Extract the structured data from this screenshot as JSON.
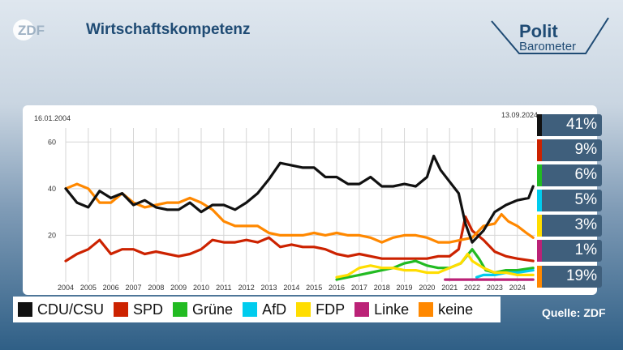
{
  "header": {
    "logo_text": "ZDF",
    "title": "Wirtschaftskompetenz",
    "brand_line1": "Polit",
    "brand_line2": "Barometer"
  },
  "colors": {
    "title": "#1f4b74"
  },
  "chart_data": {
    "type": "line",
    "title": "Wirtschaftskompetenz",
    "start_date": "16.01.2004",
    "end_date": "13.09.2024",
    "x_ticks": [
      "2004",
      "2005",
      "2006",
      "2007",
      "2008",
      "2009",
      "2010",
      "2011",
      "2012",
      "2013",
      "2014",
      "2015",
      "2016",
      "2017",
      "2018",
      "2019",
      "2020",
      "2021",
      "2022",
      "2023",
      "2024"
    ],
    "y_ticks": [
      20,
      40,
      60
    ],
    "xlim": [
      2004.0,
      2024.8
    ],
    "ylim": [
      0,
      66
    ],
    "grid": true,
    "legend_position": "bottom",
    "series": [
      {
        "name": "CDU/CSU",
        "color": "#111111",
        "final": "41%",
        "points": [
          [
            2004.0,
            40
          ],
          [
            2004.5,
            34
          ],
          [
            2005.0,
            32
          ],
          [
            2005.5,
            39
          ],
          [
            2006.0,
            36
          ],
          [
            2006.5,
            38
          ],
          [
            2007.0,
            33
          ],
          [
            2007.5,
            35
          ],
          [
            2008.0,
            32
          ],
          [
            2008.5,
            31
          ],
          [
            2009.0,
            31
          ],
          [
            2009.5,
            34
          ],
          [
            2010.0,
            30
          ],
          [
            2010.5,
            33
          ],
          [
            2011.0,
            33
          ],
          [
            2011.5,
            31
          ],
          [
            2012.0,
            34
          ],
          [
            2012.5,
            38
          ],
          [
            2013.0,
            44
          ],
          [
            2013.5,
            51
          ],
          [
            2014.0,
            50
          ],
          [
            2014.5,
            49
          ],
          [
            2015.0,
            49
          ],
          [
            2015.5,
            45
          ],
          [
            2016.0,
            45
          ],
          [
            2016.5,
            42
          ],
          [
            2017.0,
            42
          ],
          [
            2017.5,
            45
          ],
          [
            2018.0,
            41
          ],
          [
            2018.5,
            41
          ],
          [
            2019.0,
            42
          ],
          [
            2019.5,
            41
          ],
          [
            2020.0,
            45
          ],
          [
            2020.3,
            54
          ],
          [
            2020.6,
            48
          ],
          [
            2021.0,
            43
          ],
          [
            2021.4,
            38
          ],
          [
            2021.7,
            25
          ],
          [
            2022.0,
            17
          ],
          [
            2022.5,
            22
          ],
          [
            2023.0,
            30
          ],
          [
            2023.5,
            33
          ],
          [
            2024.0,
            35
          ],
          [
            2024.5,
            36
          ],
          [
            2024.7,
            41
          ]
        ]
      },
      {
        "name": "SPD",
        "color": "#cc2200",
        "final": "9%",
        "points": [
          [
            2004.0,
            9
          ],
          [
            2004.5,
            12
          ],
          [
            2005.0,
            14
          ],
          [
            2005.5,
            18
          ],
          [
            2006.0,
            12
          ],
          [
            2006.5,
            14
          ],
          [
            2007.0,
            14
          ],
          [
            2007.5,
            12
          ],
          [
            2008.0,
            13
          ],
          [
            2008.5,
            12
          ],
          [
            2009.0,
            11
          ],
          [
            2009.5,
            12
          ],
          [
            2010.0,
            14
          ],
          [
            2010.5,
            18
          ],
          [
            2011.0,
            17
          ],
          [
            2011.5,
            17
          ],
          [
            2012.0,
            18
          ],
          [
            2012.5,
            17
          ],
          [
            2013.0,
            19
          ],
          [
            2013.5,
            15
          ],
          [
            2014.0,
            16
          ],
          [
            2014.5,
            15
          ],
          [
            2015.0,
            15
          ],
          [
            2015.5,
            14
          ],
          [
            2016.0,
            12
          ],
          [
            2016.5,
            11
          ],
          [
            2017.0,
            12
          ],
          [
            2017.5,
            11
          ],
          [
            2018.0,
            10
          ],
          [
            2018.5,
            10
          ],
          [
            2019.0,
            10
          ],
          [
            2019.5,
            10
          ],
          [
            2020.0,
            10
          ],
          [
            2020.5,
            11
          ],
          [
            2021.0,
            11
          ],
          [
            2021.4,
            14
          ],
          [
            2021.7,
            28
          ],
          [
            2022.0,
            22
          ],
          [
            2022.5,
            18
          ],
          [
            2023.0,
            13
          ],
          [
            2023.5,
            11
          ],
          [
            2024.0,
            10
          ],
          [
            2024.7,
            9
          ]
        ]
      },
      {
        "name": "Grüne",
        "color": "#22bb22",
        "final": "6%",
        "points": [
          [
            2016.0,
            1
          ],
          [
            2016.5,
            2
          ],
          [
            2017.0,
            3
          ],
          [
            2017.5,
            4
          ],
          [
            2018.0,
            5
          ],
          [
            2018.5,
            6
          ],
          [
            2019.0,
            8
          ],
          [
            2019.5,
            9
          ],
          [
            2020.0,
            7
          ],
          [
            2020.5,
            6
          ],
          [
            2021.0,
            6
          ],
          [
            2021.5,
            8
          ],
          [
            2022.0,
            14
          ],
          [
            2022.3,
            10
          ],
          [
            2022.6,
            5
          ],
          [
            2023.0,
            4
          ],
          [
            2023.5,
            5
          ],
          [
            2024.0,
            5
          ],
          [
            2024.7,
            6
          ]
        ]
      },
      {
        "name": "AfD",
        "color": "#00ccee",
        "final": "5%",
        "points": [
          [
            2022.2,
            2
          ],
          [
            2022.5,
            3
          ],
          [
            2023.0,
            3
          ],
          [
            2023.5,
            4
          ],
          [
            2024.0,
            4
          ],
          [
            2024.7,
            5
          ]
        ]
      },
      {
        "name": "FDP",
        "color": "#ffdd00",
        "final": "3%",
        "points": [
          [
            2016.0,
            2
          ],
          [
            2016.5,
            3
          ],
          [
            2017.0,
            6
          ],
          [
            2017.5,
            7
          ],
          [
            2018.0,
            6
          ],
          [
            2018.5,
            6
          ],
          [
            2019.0,
            5
          ],
          [
            2019.5,
            5
          ],
          [
            2020.0,
            4
          ],
          [
            2020.5,
            4
          ],
          [
            2021.0,
            6
          ],
          [
            2021.5,
            8
          ],
          [
            2021.8,
            12
          ],
          [
            2022.0,
            9
          ],
          [
            2022.5,
            6
          ],
          [
            2023.0,
            4
          ],
          [
            2023.5,
            4
          ],
          [
            2024.0,
            3
          ],
          [
            2024.7,
            3
          ]
        ]
      },
      {
        "name": "Linke",
        "color": "#bb2277",
        "final": "1%",
        "points": [
          [
            2020.8,
            1
          ],
          [
            2021.0,
            1
          ],
          [
            2021.5,
            1
          ],
          [
            2022.0,
            1
          ],
          [
            2022.5,
            1
          ],
          [
            2023.0,
            1
          ],
          [
            2023.5,
            1
          ],
          [
            2024.0,
            1
          ],
          [
            2024.7,
            1
          ]
        ]
      },
      {
        "name": "keine",
        "color": "#ff8800",
        "final": "19%",
        "points": [
          [
            2004.0,
            40
          ],
          [
            2004.5,
            42
          ],
          [
            2005.0,
            40
          ],
          [
            2005.5,
            34
          ],
          [
            2006.0,
            34
          ],
          [
            2006.5,
            38
          ],
          [
            2007.0,
            34
          ],
          [
            2007.5,
            32
          ],
          [
            2008.0,
            33
          ],
          [
            2008.5,
            34
          ],
          [
            2009.0,
            34
          ],
          [
            2009.5,
            36
          ],
          [
            2010.0,
            34
          ],
          [
            2010.5,
            31
          ],
          [
            2011.0,
            26
          ],
          [
            2011.5,
            24
          ],
          [
            2012.0,
            24
          ],
          [
            2012.5,
            24
          ],
          [
            2013.0,
            21
          ],
          [
            2013.5,
            20
          ],
          [
            2014.0,
            20
          ],
          [
            2014.5,
            20
          ],
          [
            2015.0,
            21
          ],
          [
            2015.5,
            20
          ],
          [
            2016.0,
            21
          ],
          [
            2016.5,
            20
          ],
          [
            2017.0,
            20
          ],
          [
            2017.5,
            19
          ],
          [
            2018.0,
            17
          ],
          [
            2018.5,
            19
          ],
          [
            2019.0,
            20
          ],
          [
            2019.5,
            20
          ],
          [
            2020.0,
            19
          ],
          [
            2020.5,
            17
          ],
          [
            2021.0,
            17
          ],
          [
            2021.5,
            18
          ],
          [
            2022.0,
            19
          ],
          [
            2022.5,
            24
          ],
          [
            2023.0,
            25
          ],
          [
            2023.3,
            29
          ],
          [
            2023.6,
            26
          ],
          [
            2024.0,
            24
          ],
          [
            2024.4,
            21
          ],
          [
            2024.7,
            19
          ]
        ]
      }
    ]
  },
  "legend": [
    {
      "name": "CDU/CSU",
      "color": "#111111"
    },
    {
      "name": "SPD",
      "color": "#cc2200"
    },
    {
      "name": "Grüne",
      "color": "#22bb22"
    },
    {
      "name": "AfD",
      "color": "#00ccee"
    },
    {
      "name": "FDP",
      "color": "#ffdd00"
    },
    {
      "name": "Linke",
      "color": "#bb2277"
    },
    {
      "name": "keine",
      "color": "#ff8800"
    }
  ],
  "values": [
    {
      "label": "41%",
      "color": "#111111"
    },
    {
      "label": "9%",
      "color": "#cc2200"
    },
    {
      "label": "6%",
      "color": "#22bb22"
    },
    {
      "label": "5%",
      "color": "#00ccee"
    },
    {
      "label": "3%",
      "color": "#ffdd00"
    },
    {
      "label": "1%",
      "color": "#bb2277"
    },
    {
      "label": "19%",
      "color": "#ff8800"
    }
  ],
  "source": "Quelle: ZDF"
}
